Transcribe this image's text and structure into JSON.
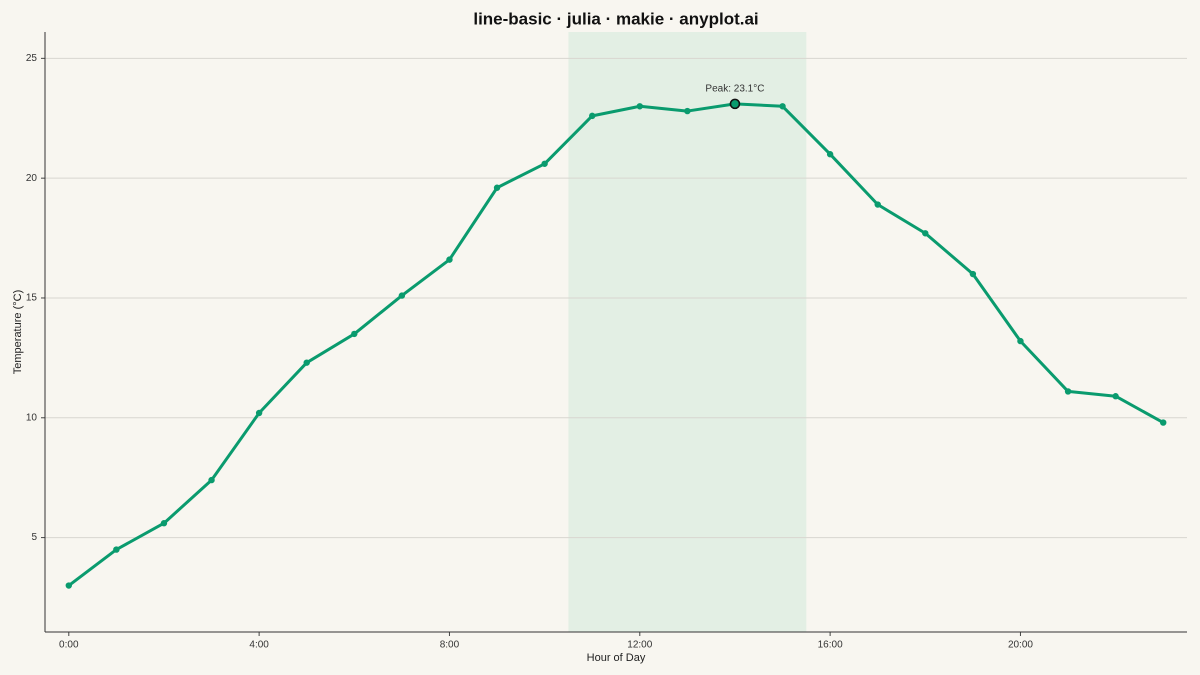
{
  "chart_data": {
    "type": "line",
    "title": "line-basic · julia · makie · anyplot.ai",
    "xlabel": "Hour of Day",
    "ylabel": "Temperature (°C)",
    "x": [
      0,
      1,
      2,
      3,
      4,
      5,
      6,
      7,
      8,
      9,
      10,
      11,
      12,
      13,
      14,
      15,
      16,
      17,
      18,
      19,
      20,
      21,
      22,
      23
    ],
    "series": [
      {
        "name": "Temperature",
        "color": "#0a9b6e",
        "values": [
          3.0,
          4.5,
          5.6,
          7.4,
          10.2,
          12.3,
          13.5,
          15.1,
          16.6,
          19.6,
          20.6,
          22.6,
          23.0,
          22.8,
          23.1,
          23.0,
          21.0,
          18.9,
          17.7,
          16.0,
          13.2,
          11.1,
          10.9,
          9.8
        ]
      }
    ],
    "highlight": {
      "x": 14,
      "y": 23.1,
      "label": "Peak: 23.1°C"
    },
    "shaded_x": [
      10.5,
      15.5
    ],
    "shade_color": "#e3efe4",
    "xlim": [
      -0.5,
      23.5
    ],
    "ylim": [
      1.06,
      26.1
    ],
    "xticks": [
      {
        "value": 0,
        "label": "0:00"
      },
      {
        "value": 4,
        "label": "4:00"
      },
      {
        "value": 8,
        "label": "8:00"
      },
      {
        "value": 12,
        "label": "12:00"
      },
      {
        "value": 16,
        "label": "16:00"
      },
      {
        "value": 20,
        "label": "20:00"
      }
    ],
    "yticks": [
      5,
      10,
      15,
      20,
      25
    ],
    "grid": true
  }
}
